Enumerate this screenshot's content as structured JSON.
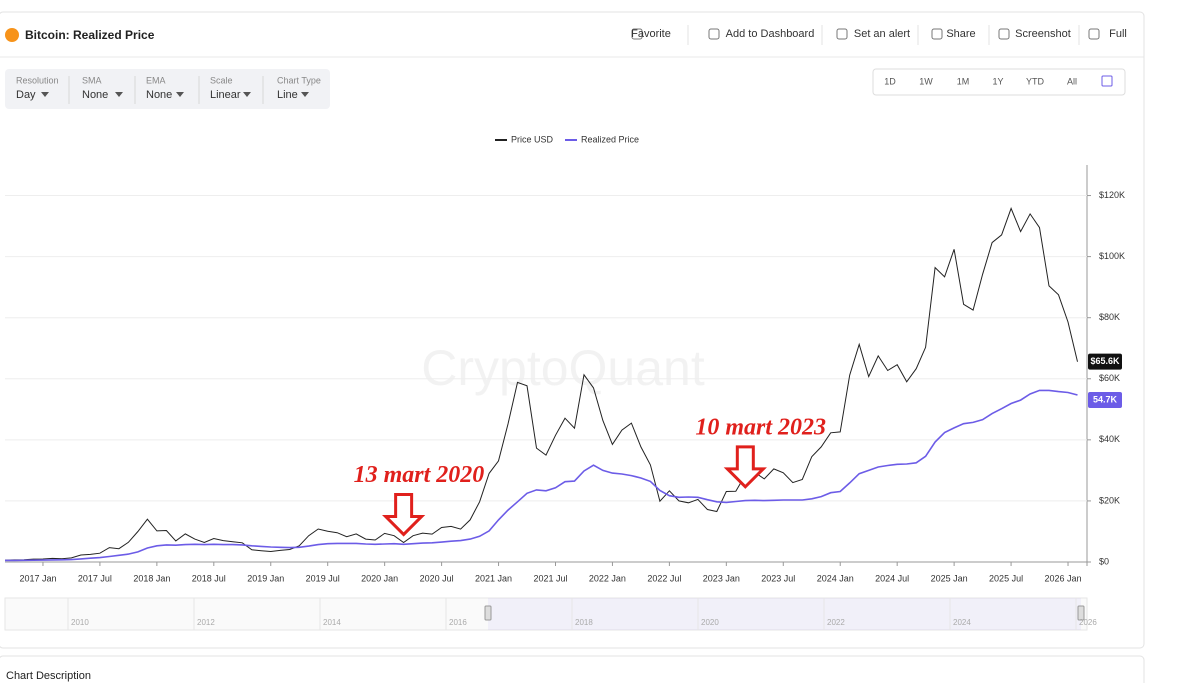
{
  "header": {
    "title": "Bitcoin: Realized Price",
    "actions": [
      "Favorite",
      "Add to Dashboard",
      "Set an alert",
      "Share",
      "Screenshot",
      "Full"
    ]
  },
  "toolbar": {
    "controls": [
      {
        "label": "Resolution",
        "value": "Day"
      },
      {
        "label": "SMA",
        "value": "None"
      },
      {
        "label": "EMA",
        "value": "None"
      },
      {
        "label": "Scale",
        "value": "Linear"
      },
      {
        "label": "Chart Type",
        "value": "Line"
      }
    ],
    "ranges": [
      "1D",
      "1W",
      "1M",
      "1Y",
      "YTD",
      "All"
    ]
  },
  "chart_data": {
    "type": "line",
    "watermark": "CryptoQuant",
    "x": [
      "2016-09",
      "2016-10",
      "2016-11",
      "2016-12",
      "2017-01",
      "2017-02",
      "2017-03",
      "2017-04",
      "2017-05",
      "2017-06",
      "2017-07",
      "2017-08",
      "2017-09",
      "2017-10",
      "2017-11",
      "2017-12",
      "2018-01",
      "2018-02",
      "2018-03",
      "2018-04",
      "2018-05",
      "2018-06",
      "2018-07",
      "2018-08",
      "2018-09",
      "2018-10",
      "2018-11",
      "2018-12",
      "2019-01",
      "2019-02",
      "2019-03",
      "2019-04",
      "2019-05",
      "2019-06",
      "2019-07",
      "2019-08",
      "2019-09",
      "2019-10",
      "2019-11",
      "2019-12",
      "2020-01",
      "2020-02",
      "2020-03",
      "2020-04",
      "2020-05",
      "2020-06",
      "2020-07",
      "2020-08",
      "2020-09",
      "2020-10",
      "2020-11",
      "2020-12",
      "2021-01",
      "2021-02",
      "2021-03",
      "2021-04",
      "2021-05",
      "2021-06",
      "2021-07",
      "2021-08",
      "2021-09",
      "2021-10",
      "2021-11",
      "2021-12",
      "2022-01",
      "2022-02",
      "2022-03",
      "2022-04",
      "2022-05",
      "2022-06",
      "2022-07",
      "2022-08",
      "2022-09",
      "2022-10",
      "2022-11",
      "2022-12",
      "2023-01",
      "2023-02",
      "2023-03",
      "2023-04",
      "2023-05",
      "2023-06",
      "2023-07",
      "2023-08",
      "2023-09",
      "2023-10",
      "2023-11",
      "2023-12",
      "2024-01",
      "2024-02",
      "2024-03",
      "2024-04",
      "2024-05",
      "2024-06",
      "2024-07",
      "2024-08",
      "2024-09",
      "2024-10",
      "2024-11",
      "2024-12",
      "2025-01",
      "2025-02",
      "2025-03",
      "2025-04",
      "2025-05",
      "2025-06",
      "2025-07",
      "2025-08",
      "2025-09",
      "2025-10",
      "2025-11",
      "2025-12",
      "2026-01",
      "2026-02"
    ],
    "series": [
      {
        "name": "Price USD",
        "color": "#222222",
        "last_label": "$65.6K",
        "values": [
          610,
          700,
          740,
          960,
          970,
          1190,
          1080,
          1350,
          2300,
          2480,
          2870,
          4700,
          4340,
          6450,
          10000,
          14000,
          10200,
          10300,
          6900,
          9200,
          7500,
          6400,
          7700,
          7000,
          6600,
          6300,
          4000,
          3700,
          3450,
          3800,
          4100,
          5300,
          8600,
          10800,
          10100,
          9600,
          8300,
          9200,
          7500,
          7200,
          9350,
          8600,
          6400,
          8600,
          9450,
          9140,
          11300,
          11650,
          10780,
          13800,
          19700,
          29000,
          33100,
          45200,
          58800,
          57700,
          37300,
          35000,
          41500,
          47100,
          43800,
          61300,
          57000,
          46300,
          38500,
          43200,
          45500,
          37700,
          31800,
          19900,
          23300,
          20000,
          19400,
          20500,
          17200,
          16550,
          23100,
          23150,
          28500,
          29300,
          27200,
          30500,
          29200,
          26000,
          27000,
          34500,
          37700,
          42300,
          42600,
          61200,
          71300,
          60700,
          67500,
          62700,
          64600,
          59000,
          63300,
          70300,
          96400,
          93400,
          102400,
          84400,
          82500,
          94200,
          104600,
          107100,
          115800,
          108200,
          114000,
          109500,
          90400,
          87500,
          78600,
          65600
        ]
      },
      {
        "name": "Realized Price",
        "color": "#6c5ce7",
        "last_label": "54.7K",
        "values": [
          520,
          540,
          560,
          590,
          630,
          680,
          720,
          800,
          1000,
          1250,
          1450,
          1800,
          2200,
          2600,
          3300,
          4600,
          5300,
          5600,
          5500,
          5700,
          5800,
          5700,
          5800,
          5700,
          5700,
          5600,
          5300,
          5100,
          4900,
          4800,
          4700,
          4800,
          5200,
          5700,
          6000,
          6100,
          6100,
          6100,
          5900,
          5800,
          5900,
          6000,
          5800,
          6000,
          6200,
          6300,
          6500,
          6800,
          7000,
          7500,
          8400,
          10200,
          13800,
          17000,
          19700,
          22500,
          23600,
          23300,
          24300,
          26300,
          26500,
          29800,
          31700,
          30000,
          29100,
          28800,
          28300,
          27500,
          26400,
          23400,
          21700,
          21200,
          21300,
          21200,
          20400,
          19700,
          19500,
          19800,
          20100,
          20200,
          20100,
          20200,
          20300,
          20300,
          20300,
          20700,
          21400,
          22700,
          23100,
          25900,
          28900,
          30000,
          31100,
          31600,
          32000,
          32100,
          32500,
          34600,
          39300,
          42400,
          43900,
          45300,
          45700,
          46600,
          48600,
          50200,
          51900,
          53000,
          55000,
          56200,
          56200,
          55800,
          55500,
          54700
        ]
      }
    ],
    "xlim": [
      "2016-09",
      "2026-03"
    ],
    "xticks": [
      {
        "value": "2017-01",
        "label": "2017 Jan"
      },
      {
        "value": "2017-07",
        "label": "2017 Jul"
      },
      {
        "value": "2018-01",
        "label": "2018 Jan"
      },
      {
        "value": "2018-07",
        "label": "2018 Jul"
      },
      {
        "value": "2019-01",
        "label": "2019 Jan"
      },
      {
        "value": "2019-07",
        "label": "2019 Jul"
      },
      {
        "value": "2020-01",
        "label": "2020 Jan"
      },
      {
        "value": "2020-07",
        "label": "2020 Jul"
      },
      {
        "value": "2021-01",
        "label": "2021 Jan"
      },
      {
        "value": "2021-07",
        "label": "2021 Jul"
      },
      {
        "value": "2022-01",
        "label": "2022 Jan"
      },
      {
        "value": "2022-07",
        "label": "2022 Jul"
      },
      {
        "value": "2023-01",
        "label": "2023 Jan"
      },
      {
        "value": "2023-07",
        "label": "2023 Jul"
      },
      {
        "value": "2024-01",
        "label": "2024 Jan"
      },
      {
        "value": "2024-07",
        "label": "2024 Jul"
      },
      {
        "value": "2025-01",
        "label": "2025 Jan"
      },
      {
        "value": "2025-07",
        "label": "2025 Jul"
      },
      {
        "value": "2026-01",
        "label": "2026 Jan"
      }
    ],
    "ylim": [
      0,
      130000
    ],
    "yticks": [
      {
        "value": 0,
        "label": "$0"
      },
      {
        "value": 20000,
        "label": "$20K"
      },
      {
        "value": 40000,
        "label": "$40K"
      },
      {
        "value": 60000,
        "label": "$60K"
      },
      {
        "value": 80000,
        "label": "$80K"
      },
      {
        "value": 100000,
        "label": "$100K"
      },
      {
        "value": 120000,
        "label": "$120K"
      }
    ],
    "grid": true,
    "legend": "top",
    "annotations": [
      {
        "text": "13 mart 2020",
        "x": "2020-03",
        "y": 6400,
        "color": "#e0201c"
      },
      {
        "text": "10 mart 2023",
        "x": "2023-03",
        "y": 22000,
        "color": "#e0201c"
      }
    ]
  },
  "navigator": {
    "labels": [
      "2010",
      "2012",
      "2014",
      "2016",
      "2018",
      "2020",
      "2022",
      "2024",
      "2026"
    ]
  },
  "footer": {
    "title": "Chart Description"
  }
}
